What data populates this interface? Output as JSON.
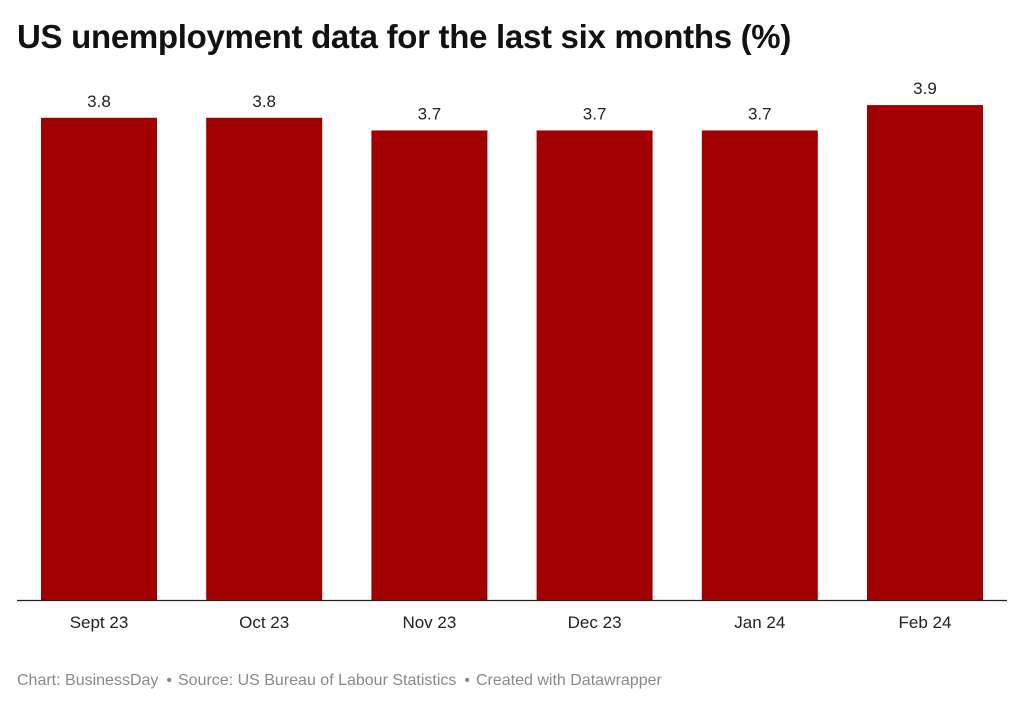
{
  "chart_data": {
    "type": "bar",
    "title": "US unemployment data for the last six months (%)",
    "categories": [
      "Sept 23",
      "Oct 23",
      "Nov 23",
      "Dec 23",
      "Jan 24",
      "Feb 24"
    ],
    "values": [
      3.8,
      3.8,
      3.7,
      3.7,
      3.7,
      3.9
    ],
    "data_labels": [
      "3.8",
      "3.8",
      "3.7",
      "3.7",
      "3.7",
      "3.9"
    ],
    "xlabel": "",
    "ylabel": "",
    "ylim": [
      0,
      3.94
    ],
    "grid": false,
    "bar_color": "#a00000"
  },
  "footer": {
    "chart_credit": "Chart: BusinessDay",
    "source": "Source: US Bureau of Labour Statistics",
    "created_with": "Created with Datawrapper",
    "separator": "•"
  }
}
